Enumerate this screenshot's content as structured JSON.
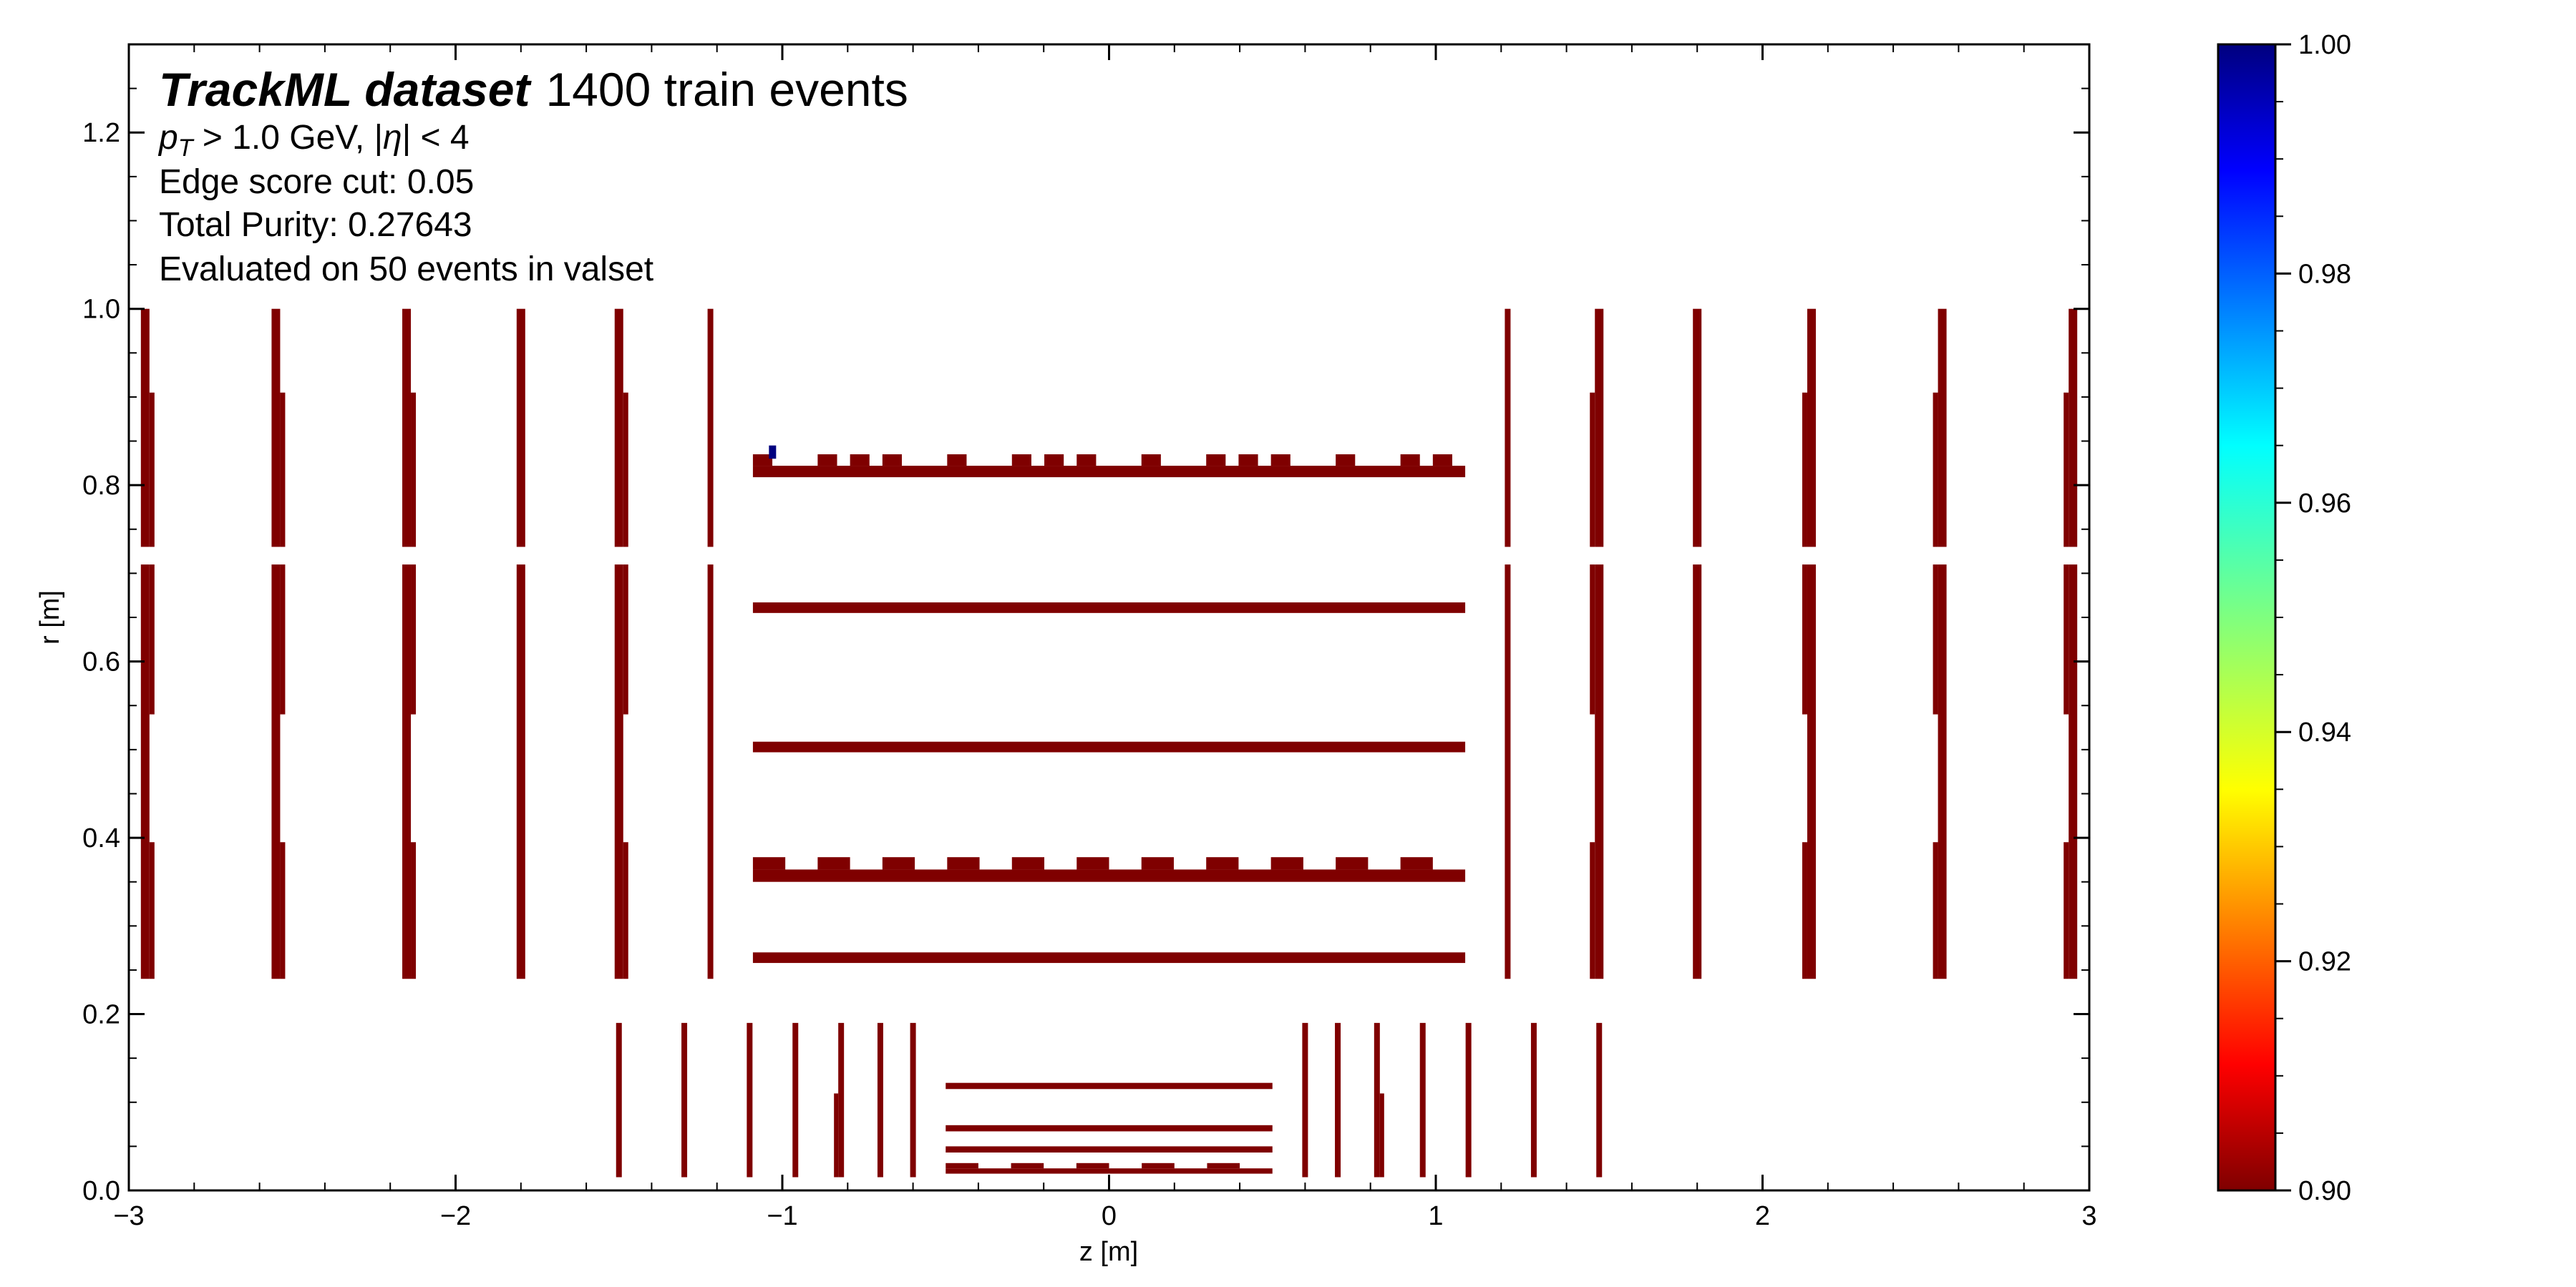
{
  "chart_data": {
    "type": "heatmap",
    "annotation": {
      "title_bold": "TrackML dataset",
      "title_rest": "1400 train events",
      "line_pt_symbol": "p",
      "line_pt_sub": "T",
      "line_pt_rest": " > 1.0 GeV, |",
      "line_eta_symbol": "η",
      "line_eta_rest": "| < 4",
      "line_cut": "Edge score cut: 0.05",
      "line_purity": "Total Purity:  0.27643",
      "line_eval": "Evaluated on 50 events in valset"
    },
    "xlabel": "z [m]",
    "ylabel": "r [m]",
    "xlim": [
      -3,
      3
    ],
    "ylim": [
      0,
      1.3
    ],
    "xticks": [
      -3,
      -2,
      -1,
      0,
      1,
      2,
      3
    ],
    "xtick_labels": [
      "−3",
      "−2",
      "−1",
      "0",
      "1",
      "2",
      "3"
    ],
    "yticks": [
      0.0,
      0.2,
      0.4,
      0.6,
      0.8,
      1.0,
      1.2
    ],
    "ytick_labels": [
      "0.0",
      "0.2",
      "0.4",
      "0.6",
      "0.8",
      "1.0",
      "1.2"
    ],
    "colorbar": {
      "min": 0.9,
      "max": 1.0,
      "ticks": [
        0.9,
        0.92,
        0.94,
        0.96,
        0.98,
        1.0
      ],
      "tick_labels": [
        "0.90",
        "0.92",
        "0.94",
        "0.96",
        "0.98",
        "1.00"
      ],
      "colormap": "jet"
    },
    "cell_value_dominant": 0.9,
    "colors": {
      "cell": "#7f0000",
      "high_cell": "#00007f"
    },
    "barrel_layers": [
      {
        "r_min": 0.019,
        "r_max": 0.031,
        "z_min": -0.5,
        "z_max": 0.5,
        "value": 0.9,
        "crenellated": true
      },
      {
        "r_min": 0.043,
        "r_max": 0.05,
        "z_min": -0.5,
        "z_max": 0.5,
        "value": 0.9
      },
      {
        "r_min": 0.067,
        "r_max": 0.074,
        "z_min": -0.5,
        "z_max": 0.5,
        "value": 0.9
      },
      {
        "r_min": 0.115,
        "r_max": 0.122,
        "z_min": -0.5,
        "z_max": 0.5,
        "value": 0.9
      },
      {
        "r_min": 0.258,
        "r_max": 0.27,
        "z_min": -1.09,
        "z_max": 1.09,
        "value": 0.9
      },
      {
        "r_min": 0.35,
        "r_max": 0.378,
        "z_min": -1.09,
        "z_max": 1.09,
        "value": 0.9,
        "crenellated": true
      },
      {
        "r_min": 0.497,
        "r_max": 0.509,
        "z_min": -1.09,
        "z_max": 1.09,
        "value": 0.9
      },
      {
        "r_min": 0.655,
        "r_max": 0.667,
        "z_min": -1.09,
        "z_max": 1.09,
        "value": 0.9
      },
      {
        "r_min": 0.809,
        "r_max": 0.835,
        "z_min": -1.09,
        "z_max": 1.09,
        "value": 0.9,
        "crenellated": true
      }
    ],
    "inner_endcap_z": [
      -1.5,
      -1.3,
      -1.1,
      -0.96,
      -0.82,
      -0.7,
      -0.6,
      0.6,
      0.7,
      0.82,
      0.96,
      1.1,
      1.3,
      1.5
    ],
    "inner_endcap_r": [
      0.015,
      0.19
    ],
    "outer_endcap_z": [
      -2.95,
      -2.55,
      -2.15,
      -1.8,
      -1.5,
      -1.22,
      1.22,
      1.5,
      1.8,
      2.15,
      2.55,
      2.95
    ],
    "outer_endcap_r": [
      [
        0.24,
        0.71
      ],
      [
        0.73,
        1.0
      ]
    ],
    "high_value_cell": {
      "z": -1.03,
      "r": 0.83,
      "value": 1.0
    }
  }
}
